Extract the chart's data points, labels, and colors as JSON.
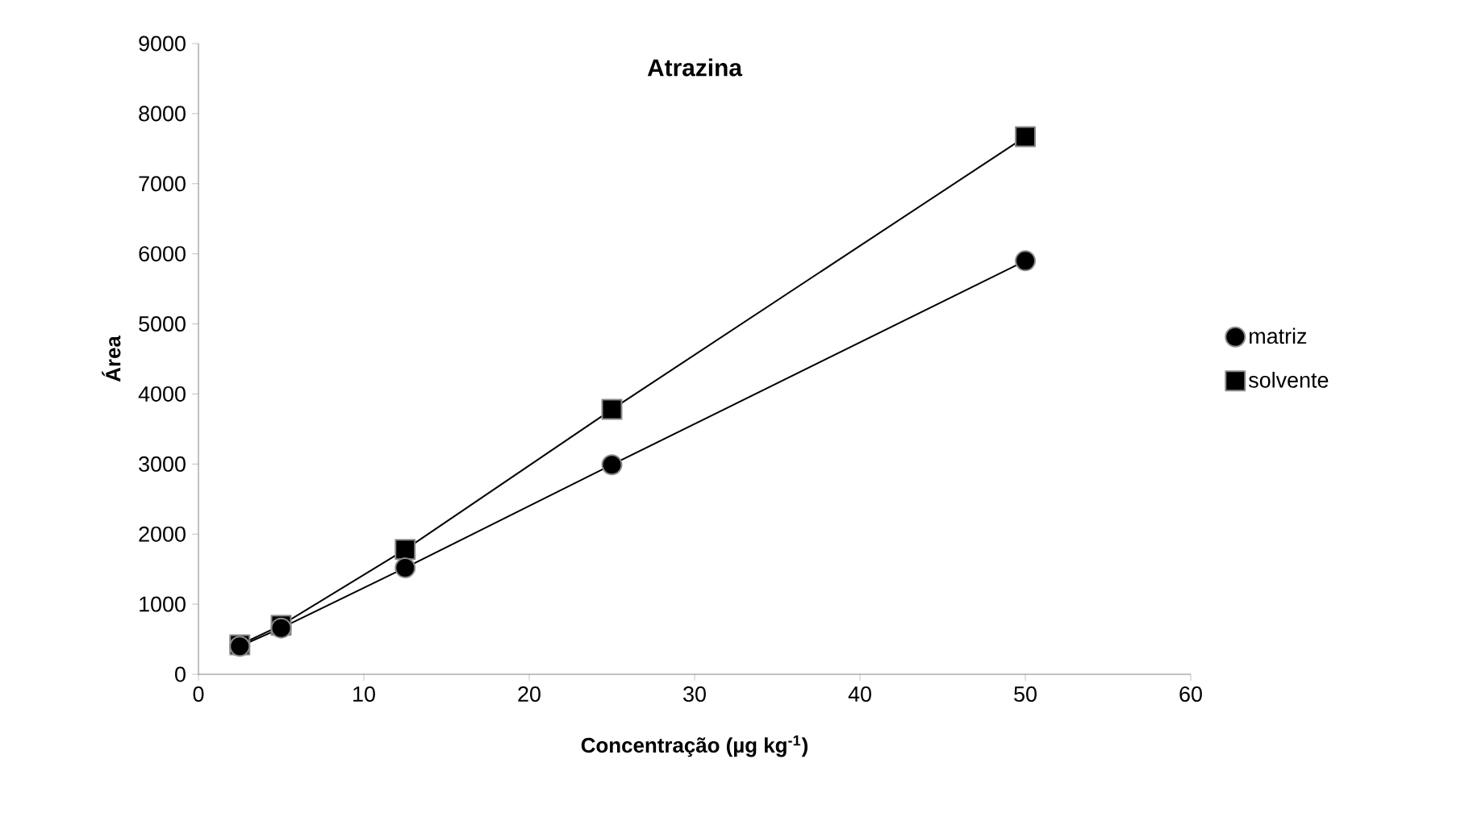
{
  "chart_data": {
    "type": "line",
    "title": "Atrazina",
    "xlabel": "Concentração (µg kg$^{-1}$)",
    "ylabel": "Área",
    "xlim": [
      0,
      60
    ],
    "xticks": [
      0,
      10,
      20,
      30,
      40,
      50,
      60
    ],
    "ylim": [
      0,
      9000
    ],
    "yticks": [
      0,
      1000,
      2000,
      3000,
      4000,
      5000,
      6000,
      7000,
      8000,
      9000
    ],
    "grid": false,
    "legend": "right",
    "series": [
      {
        "name": "matriz",
        "color": "#000000",
        "marker": "circle",
        "x": [
          2.5,
          5,
          12.5,
          25,
          50
        ],
        "values": [
          400,
          660,
          1520,
          2990,
          5900
        ]
      },
      {
        "name": "solvente",
        "color": "#000000",
        "marker": "square",
        "x": [
          2.5,
          5,
          12.5,
          25,
          50
        ],
        "values": [
          420,
          700,
          1780,
          3780,
          7670
        ]
      }
    ]
  }
}
